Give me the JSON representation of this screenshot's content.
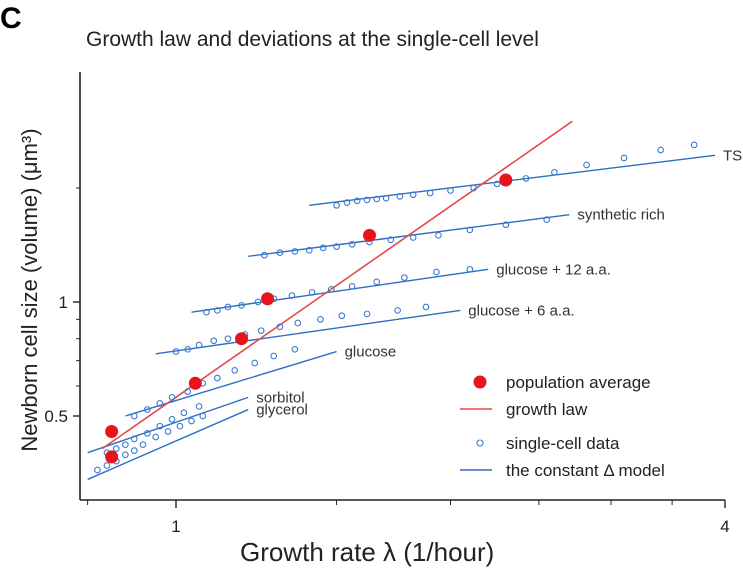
{
  "panel_letter": "C",
  "chart_data": {
    "type": "scatter",
    "title": "Growth law and deviations at the single-cell level",
    "xlabel": "Growth rate λ (1/hour)",
    "ylabel": "Newborn cell size (volume) (μm³)",
    "x_scale": "log",
    "y_scale": "log",
    "xlim": [
      0.8,
      4.0
    ],
    "ylim": [
      0.4,
      2.8
    ],
    "x_tick_labels": [
      {
        "value": 1,
        "label": "1"
      },
      {
        "value": 4,
        "label": "4"
      }
    ],
    "x_minor_ticks": [
      0.8,
      1.5,
      2.0,
      2.5,
      3.0,
      3.5
    ],
    "y_tick_labels": [
      {
        "value": 0.5,
        "label": "0.5"
      },
      {
        "value": 1,
        "label": "1"
      }
    ],
    "y_minor_ticks": [
      0.6,
      0.7,
      0.8,
      0.9,
      2.0
    ],
    "colors": {
      "population": "#e8141c",
      "growth_law": "#e24a4a",
      "single_cell": "#3a7bd5",
      "model": "#2c6fc2",
      "axis": "#222222"
    },
    "legend": {
      "placement": "bottom-right",
      "entries": [
        {
          "label": "population average",
          "marker": "red-dot"
        },
        {
          "label": "growth law",
          "marker": "red-line"
        },
        {
          "label": "single-cell data",
          "marker": "blue-circle"
        },
        {
          "label": "the constant Δ model",
          "marker": "blue-line"
        }
      ]
    },
    "growth_law": {
      "x": [
        0.83,
        2.72
      ],
      "y": [
        0.41,
        3.0
      ]
    },
    "population_average": [
      {
        "x": 0.85,
        "y": 0.39
      },
      {
        "x": 0.85,
        "y": 0.455
      },
      {
        "x": 1.05,
        "y": 0.61
      },
      {
        "x": 1.18,
        "y": 0.8
      },
      {
        "x": 1.26,
        "y": 1.02
      },
      {
        "x": 1.63,
        "y": 1.5
      },
      {
        "x": 2.3,
        "y": 2.1
      }
    ],
    "conditions": [
      {
        "label": "glycerol",
        "model_line": {
          "x": [
            0.8,
            1.2
          ],
          "y": [
            0.34,
            0.52
          ]
        },
        "points": [
          [
            0.82,
            0.36
          ],
          [
            0.84,
            0.37
          ],
          [
            0.86,
            0.38
          ],
          [
            0.88,
            0.395
          ],
          [
            0.9,
            0.405
          ],
          [
            0.92,
            0.42
          ],
          [
            0.95,
            0.44
          ],
          [
            0.98,
            0.455
          ],
          [
            1.01,
            0.47
          ],
          [
            1.04,
            0.485
          ],
          [
            1.07,
            0.5
          ]
        ]
      },
      {
        "label": "sorbitol",
        "model_line": {
          "x": [
            0.8,
            1.2
          ],
          "y": [
            0.4,
            0.56
          ]
        },
        "points": [
          [
            0.84,
            0.4
          ],
          [
            0.86,
            0.41
          ],
          [
            0.88,
            0.42
          ],
          [
            0.9,
            0.435
          ],
          [
            0.93,
            0.45
          ],
          [
            0.96,
            0.47
          ],
          [
            0.99,
            0.49
          ],
          [
            1.02,
            0.51
          ],
          [
            1.06,
            0.53
          ]
        ]
      },
      {
        "label": "glucose",
        "model_line": {
          "x": [
            0.88,
            1.5
          ],
          "y": [
            0.5,
            0.74
          ]
        },
        "points": [
          [
            0.9,
            0.5
          ],
          [
            0.93,
            0.52
          ],
          [
            0.96,
            0.54
          ],
          [
            0.99,
            0.56
          ],
          [
            1.03,
            0.58
          ],
          [
            1.07,
            0.61
          ],
          [
            1.11,
            0.63
          ],
          [
            1.16,
            0.66
          ],
          [
            1.22,
            0.69
          ],
          [
            1.28,
            0.72
          ],
          [
            1.35,
            0.75
          ]
        ]
      },
      {
        "label": "glucose + 6 a.a.",
        "model_line": {
          "x": [
            0.95,
            2.05
          ],
          "y": [
            0.73,
            0.95
          ]
        },
        "points": [
          [
            1.0,
            0.74
          ],
          [
            1.03,
            0.75
          ],
          [
            1.06,
            0.77
          ],
          [
            1.1,
            0.79
          ],
          [
            1.14,
            0.8
          ],
          [
            1.19,
            0.82
          ],
          [
            1.24,
            0.84
          ],
          [
            1.3,
            0.86
          ],
          [
            1.36,
            0.88
          ],
          [
            1.44,
            0.9
          ],
          [
            1.52,
            0.92
          ],
          [
            1.62,
            0.93
          ],
          [
            1.75,
            0.95
          ],
          [
            1.88,
            0.97
          ]
        ]
      },
      {
        "label": "glucose + 12 a.a.",
        "model_line": {
          "x": [
            1.04,
            2.2
          ],
          "y": [
            0.94,
            1.22
          ]
        },
        "points": [
          [
            1.08,
            0.94
          ],
          [
            1.11,
            0.95
          ],
          [
            1.14,
            0.97
          ],
          [
            1.18,
            0.98
          ],
          [
            1.23,
            1.0
          ],
          [
            1.28,
            1.02
          ],
          [
            1.34,
            1.04
          ],
          [
            1.41,
            1.06
          ],
          [
            1.48,
            1.08
          ],
          [
            1.56,
            1.1
          ],
          [
            1.66,
            1.13
          ],
          [
            1.78,
            1.16
          ],
          [
            1.93,
            1.2
          ],
          [
            2.1,
            1.22
          ]
        ]
      },
      {
        "label": "synthetic rich",
        "model_line": {
          "x": [
            1.2,
            2.7
          ],
          "y": [
            1.32,
            1.7
          ]
        },
        "points": [
          [
            1.25,
            1.33
          ],
          [
            1.3,
            1.35
          ],
          [
            1.35,
            1.36
          ],
          [
            1.4,
            1.37
          ],
          [
            1.45,
            1.39
          ],
          [
            1.5,
            1.4
          ],
          [
            1.56,
            1.42
          ],
          [
            1.63,
            1.44
          ],
          [
            1.72,
            1.46
          ],
          [
            1.82,
            1.48
          ],
          [
            1.94,
            1.5
          ],
          [
            2.1,
            1.55
          ],
          [
            2.3,
            1.6
          ],
          [
            2.55,
            1.65
          ]
        ]
      },
      {
        "label": "TSB",
        "model_line": {
          "x": [
            1.4,
            3.9
          ],
          "y": [
            1.8,
            2.44
          ]
        },
        "points": [
          [
            1.5,
            1.8
          ],
          [
            1.54,
            1.83
          ],
          [
            1.58,
            1.85
          ],
          [
            1.62,
            1.86
          ],
          [
            1.66,
            1.87
          ],
          [
            1.7,
            1.88
          ],
          [
            1.76,
            1.9
          ],
          [
            1.82,
            1.92
          ],
          [
            1.9,
            1.94
          ],
          [
            2.0,
            1.97
          ],
          [
            2.12,
            2.0
          ],
          [
            2.25,
            2.05
          ],
          [
            2.42,
            2.12
          ],
          [
            2.6,
            2.2
          ],
          [
            2.82,
            2.3
          ],
          [
            3.1,
            2.4
          ],
          [
            3.4,
            2.52
          ],
          [
            3.7,
            2.6
          ]
        ]
      }
    ]
  }
}
